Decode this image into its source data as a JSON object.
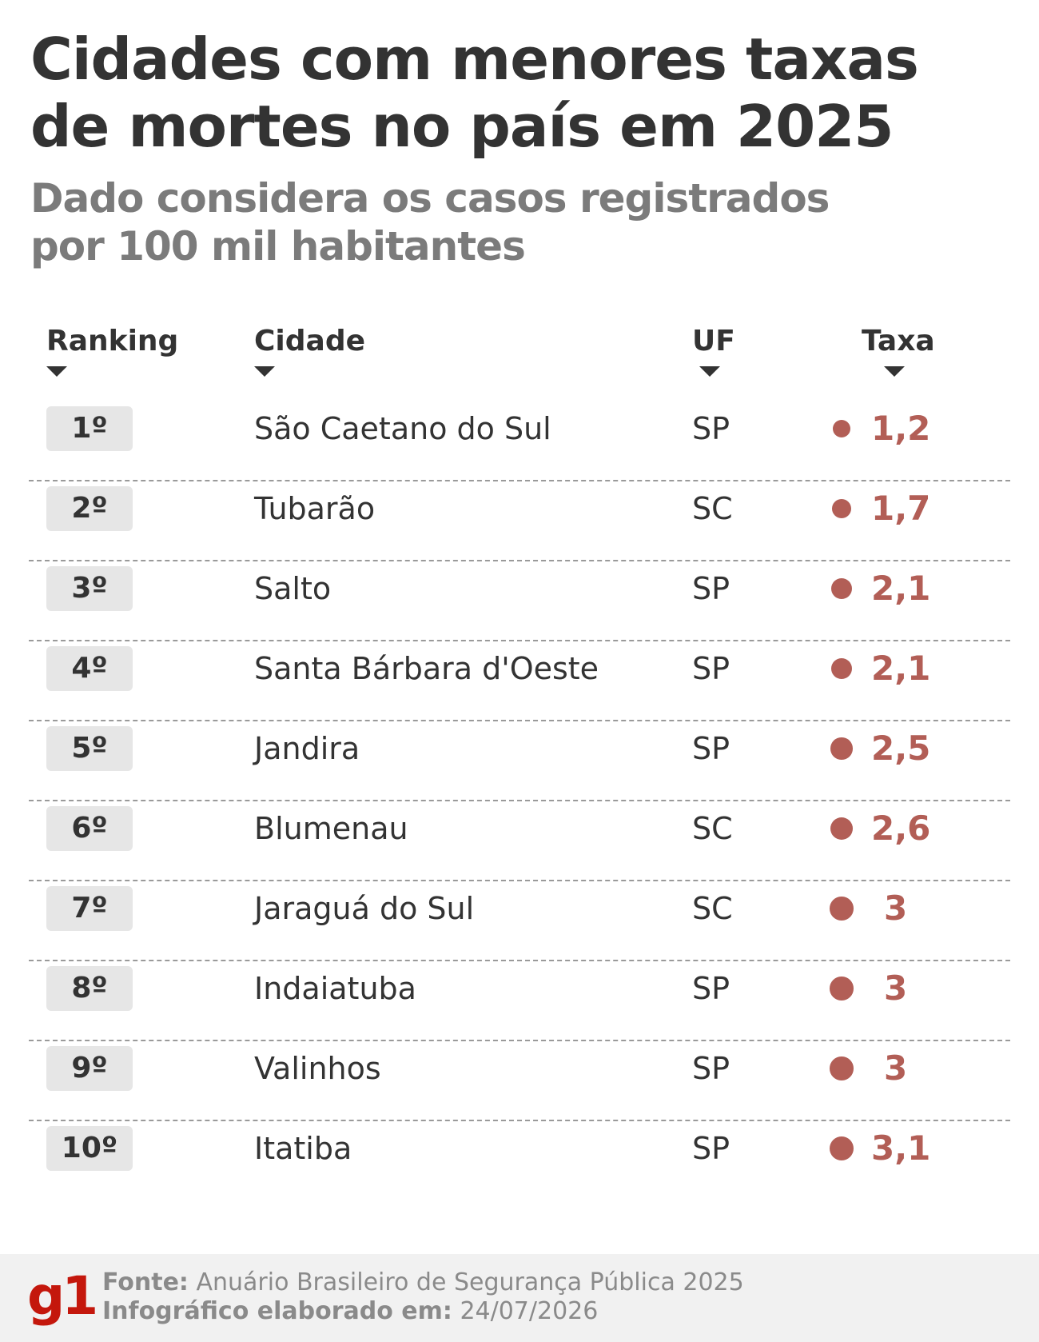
{
  "title": "Cidades com menores taxas de mortes no país em 2025",
  "subtitle": "Dado considera os casos registrados por 100 mil habitantes",
  "columns": {
    "ranking": "Ranking",
    "cidade": "Cidade",
    "uf": "UF",
    "taxa": "Taxa"
  },
  "chart_data": {
    "type": "table",
    "title": "Cidades com menores taxas de mortes no país em 2025",
    "subtitle": "Dado considera os casos registrados por 100 mil habitantes",
    "columns": [
      "Ranking",
      "Cidade",
      "UF",
      "Taxa"
    ],
    "rows": [
      {
        "rank": "1º",
        "city": "São Caetano do Sul",
        "uf": "SP",
        "rate": 1.2,
        "rate_label": "1,2"
      },
      {
        "rank": "2º",
        "city": "Tubarão",
        "uf": "SC",
        "rate": 1.7,
        "rate_label": "1,7"
      },
      {
        "rank": "3º",
        "city": "Salto",
        "uf": "SP",
        "rate": 2.1,
        "rate_label": "2,1"
      },
      {
        "rank": "4º",
        "city": "Santa Bárbara d'Oeste",
        "uf": "SP",
        "rate": 2.1,
        "rate_label": "2,1"
      },
      {
        "rank": "5º",
        "city": "Jandira",
        "uf": "SP",
        "rate": 2.5,
        "rate_label": "2,5"
      },
      {
        "rank": "6º",
        "city": "Blumenau",
        "uf": "SC",
        "rate": 2.6,
        "rate_label": "2,6"
      },
      {
        "rank": "7º",
        "city": "Jaraguá do Sul",
        "uf": "SC",
        "rate": 3,
        "rate_label": "3"
      },
      {
        "rank": "8º",
        "city": "Indaiatuba",
        "uf": "SP",
        "rate": 3,
        "rate_label": "3"
      },
      {
        "rank": "9º",
        "city": "Valinhos",
        "uf": "SP",
        "rate": 3,
        "rate_label": "3"
      },
      {
        "rank": "10º",
        "city": "Itatiba",
        "uf": "SP",
        "rate": 3.1,
        "rate_label": "3,1"
      }
    ]
  },
  "colors": {
    "accent": "#b25e56",
    "logo": "#c4170c",
    "text": "#333333"
  },
  "footer": {
    "logo": "g1",
    "source_label": "Fonte:",
    "source_value": " Anuário Brasileiro de Segurança Pública 2025",
    "made_label": "Infográfico elaborado em:",
    "made_value": " 24/07/2026"
  }
}
